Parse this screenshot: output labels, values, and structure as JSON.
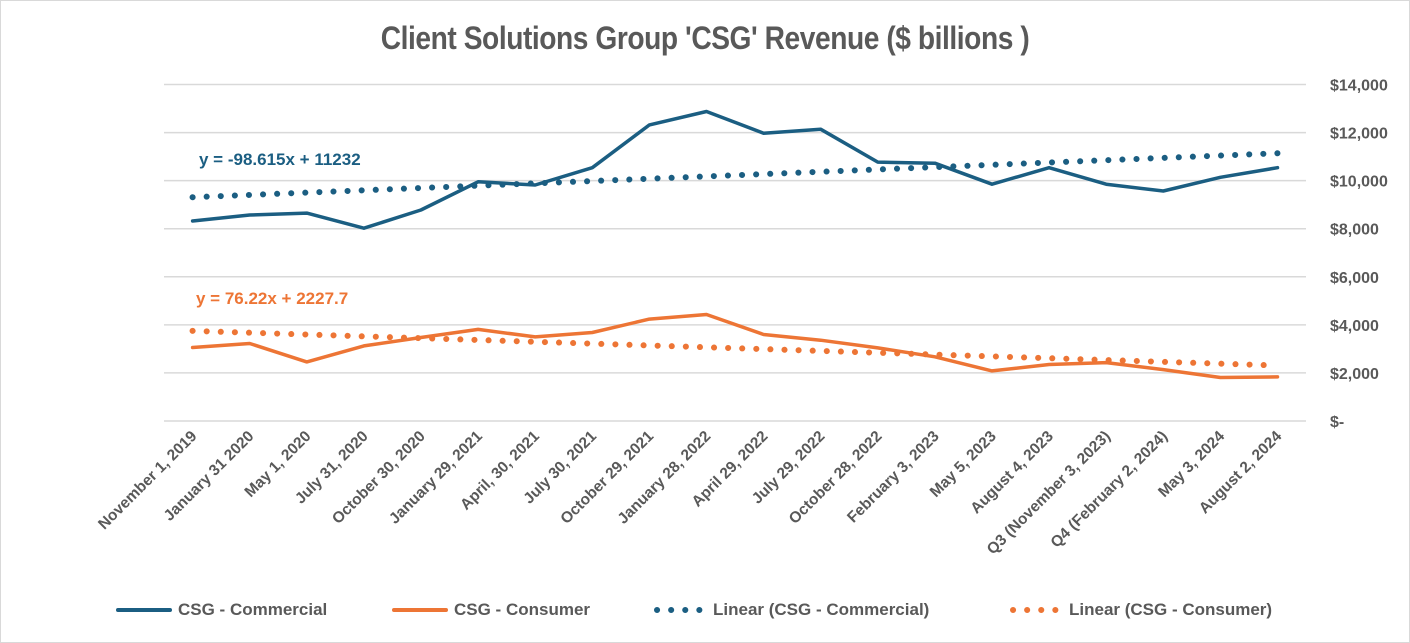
{
  "chart_data": {
    "type": "line",
    "title": "Client Solutions Group 'CSG' Revenue ($ billions )",
    "xlabel": "",
    "ylabel": "",
    "ylim": [
      0,
      14000
    ],
    "y_axis_position": "right",
    "y_ticks": [
      0,
      2000,
      4000,
      6000,
      8000,
      10000,
      12000,
      14000
    ],
    "y_tick_labels": [
      "$-",
      "$2,000",
      "$4,000",
      "$6,000",
      "$8,000",
      "$10,000",
      "$12,000",
      "$14,000"
    ],
    "grid": true,
    "legend_position": "bottom",
    "categories": [
      "November 1, 2019",
      "January 31 2020",
      "May 1, 2020",
      "July 31, 2020",
      "October 30, 2020",
      "January 29, 2021",
      "April, 30, 2021",
      "July 30, 2021",
      "October 29, 2021",
      "January 28, 2022",
      "April 29, 2022",
      "July 29, 2022",
      "October 28, 2022",
      "February 3, 2023",
      "May 5, 2023",
      "August 4, 2023",
      "Q3 (November 3, 2023)",
      "Q4 (February 2, 2024)",
      "May 3, 2024",
      "August 2, 2024"
    ],
    "series": [
      {
        "name": "CSG - Commercial",
        "style": "solid",
        "color": "#1b5e82",
        "values": [
          8320,
          8570,
          8650,
          8020,
          8780,
          9950,
          9820,
          10540,
          12320,
          12875,
          11975,
          12140,
          10770,
          10725,
          9850,
          10540,
          9850,
          9570,
          10140,
          10540
        ]
      },
      {
        "name": "CSG - Consumer",
        "style": "solid",
        "color": "#ed7535",
        "values": [
          3060,
          3225,
          2460,
          3125,
          3475,
          3810,
          3500,
          3680,
          4240,
          4430,
          3600,
          3360,
          3040,
          2670,
          2085,
          2350,
          2430,
          2140,
          1810,
          1835
        ]
      },
      {
        "name": "Linear (CSG - Commercial)",
        "style": "dotted",
        "color": "#1b5e82",
        "trend_of": "CSG - Commercial",
        "start_value": 9310,
        "end_value": 11140
      },
      {
        "name": "Linear (CSG - Consumer)",
        "style": "dotted",
        "color": "#ed7535",
        "trend_of": "CSG - Consumer",
        "start_value": 3750,
        "end_value": 2310
      }
    ],
    "annotations": [
      {
        "text": "y = -98.615x + 11232",
        "series": "Linear (CSG - Commercial)",
        "color": "#1b5e82"
      },
      {
        "text": "y = 76.22x + 2227.7",
        "series": "Linear (CSG - Consumer)",
        "color": "#ed7535"
      }
    ]
  },
  "legend": {
    "items": [
      {
        "label": "CSG - Commercial",
        "style": "solid",
        "color": "#1b5e82"
      },
      {
        "label": "CSG - Consumer",
        "style": "solid",
        "color": "#ed7535"
      },
      {
        "label": "Linear (CSG - Commercial)",
        "style": "dotted",
        "color": "#1b5e82"
      },
      {
        "label": "Linear (CSG - Consumer)",
        "style": "dotted",
        "color": "#ed7535"
      }
    ]
  },
  "colors": {
    "gridline": "#d9d9d9",
    "text": "#595959",
    "border": "#d9d9d9"
  }
}
